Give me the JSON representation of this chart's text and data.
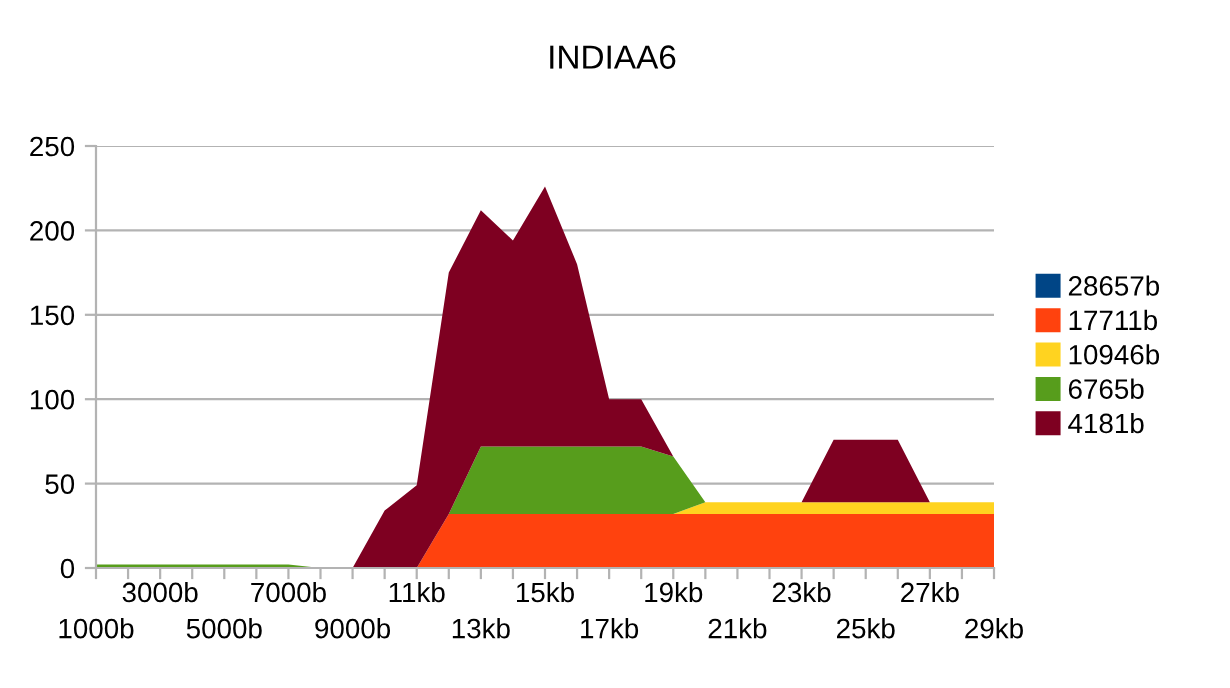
{
  "chart_data": {
    "type": "area",
    "stacked": true,
    "title": "INDIAA6",
    "categories": [
      "1000b",
      null,
      "3000b",
      null,
      "5000b",
      null,
      "7000b",
      null,
      "9000b",
      null,
      "11kb",
      null,
      "13kb",
      null,
      "15kb",
      null,
      "17kb",
      null,
      "19kb",
      null,
      "21kb",
      null,
      "23kb",
      null,
      "25kb",
      null,
      "27kb",
      null,
      "29kb"
    ],
    "ylim": [
      0,
      250
    ],
    "yticks": [
      0,
      50,
      100,
      150,
      200,
      250
    ],
    "grid": "y",
    "legend": "right",
    "series": [
      {
        "name": "28657b",
        "color": "#004586",
        "values": [
          null,
          null,
          null,
          null,
          null,
          null,
          null,
          null,
          null,
          null,
          null,
          null,
          null,
          null,
          null,
          null,
          null,
          null,
          null,
          null,
          null,
          null,
          null,
          null,
          null,
          null,
          null,
          null,
          null
        ]
      },
      {
        "name": "17711b",
        "color": "#ff420e",
        "values": [
          0,
          0,
          0,
          0,
          0,
          0,
          0,
          0,
          0,
          0,
          0,
          32,
          32,
          32,
          32,
          32,
          32,
          32,
          32,
          32,
          32,
          32,
          32,
          32,
          32,
          32,
          32,
          32,
          32
        ]
      },
      {
        "name": "10946b",
        "color": "#ffd320",
        "values": [
          0,
          0,
          0,
          0,
          0,
          0,
          0,
          0,
          0,
          0,
          0,
          0,
          0,
          0,
          0,
          0,
          0,
          0,
          0,
          7,
          7,
          7,
          7,
          7,
          7,
          7,
          7,
          7,
          7
        ]
      },
      {
        "name": "6765b",
        "color": "#579d1c",
        "values": [
          2,
          2,
          2,
          2,
          2,
          2,
          2,
          0,
          0,
          0,
          0,
          0,
          40,
          40,
          40,
          40,
          40,
          40,
          34,
          0,
          0,
          0,
          0,
          0,
          0,
          0,
          0,
          0,
          0
        ]
      },
      {
        "name": "4181b",
        "color": "#7e0021",
        "values": [
          0,
          0,
          0,
          0,
          0,
          0,
          0,
          0,
          0,
          34,
          49,
          143,
          140,
          122,
          154,
          108,
          28,
          28,
          0,
          0,
          0,
          0,
          0,
          37,
          37,
          37,
          0,
          0,
          0
        ]
      }
    ]
  }
}
